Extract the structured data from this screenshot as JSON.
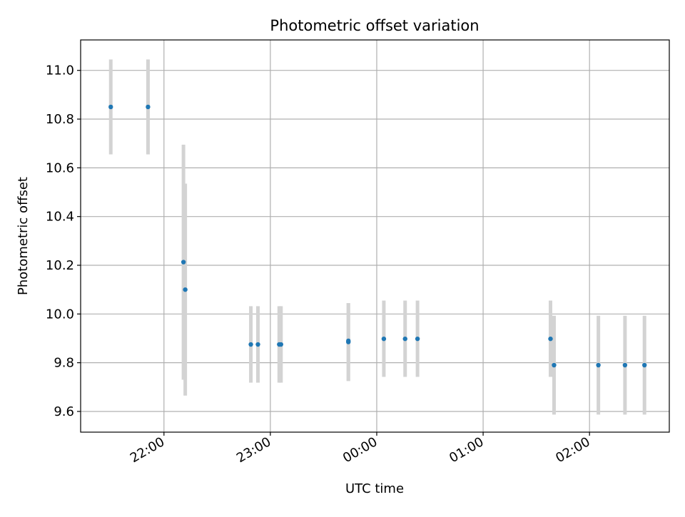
{
  "chart_data": {
    "type": "scatter",
    "title": "Photometric offset variation",
    "xlabel": "UTC time",
    "ylabel": "Photometric offset",
    "x_ticks": [
      "22:00",
      "23:00",
      "00:00",
      "01:00",
      "02:00"
    ],
    "y_ticks": [
      "9.6",
      "9.8",
      "10.0",
      "10.2",
      "10.4",
      "10.6",
      "10.8",
      "11.0"
    ],
    "xlim": [
      "21:13",
      "02:45"
    ],
    "ylim": [
      9.515,
      11.125
    ],
    "grid": true,
    "colors": {
      "marker": "#1f77b4",
      "errorbar": "#d3d3d3",
      "grid": "#b0b0b0",
      "axes": "#000000"
    },
    "series": [
      {
        "points": [
          {
            "x": "21:30",
            "y": 10.85,
            "yerr_low": 10.655,
            "yerr_high": 11.045
          },
          {
            "x": "21:51",
            "y": 10.85,
            "yerr_low": 10.655,
            "yerr_high": 11.045
          },
          {
            "x": "22:11",
            "y": 10.213,
            "yerr_low": 9.73,
            "yerr_high": 10.695
          },
          {
            "x": "22:12",
            "y": 10.1,
            "yerr_low": 9.665,
            "yerr_high": 10.535
          },
          {
            "x": "22:49",
            "y": 9.875,
            "yerr_low": 9.718,
            "yerr_high": 10.032
          },
          {
            "x": "22:53",
            "y": 9.875,
            "yerr_low": 9.718,
            "yerr_high": 10.032
          },
          {
            "x": "23:05",
            "y": 9.875,
            "yerr_low": 9.718,
            "yerr_high": 10.032
          },
          {
            "x": "23:06",
            "y": 9.875,
            "yerr_low": 9.718,
            "yerr_high": 10.032
          },
          {
            "x": "23:44",
            "y": 9.885,
            "yerr_low": 9.725,
            "yerr_high": 10.045
          },
          {
            "x": "23:44",
            "y": 9.89,
            "yerr_low": 9.725,
            "yerr_high": 10.045
          },
          {
            "x": "00:04",
            "y": 9.898,
            "yerr_low": 9.742,
            "yerr_high": 10.055
          },
          {
            "x": "00:16",
            "y": 9.898,
            "yerr_low": 9.742,
            "yerr_high": 10.055
          },
          {
            "x": "00:23",
            "y": 9.898,
            "yerr_low": 9.742,
            "yerr_high": 10.055
          },
          {
            "x": "01:38",
            "y": 9.898,
            "yerr_low": 9.742,
            "yerr_high": 10.055
          },
          {
            "x": "01:40",
            "y": 9.79,
            "yerr_low": 9.587,
            "yerr_high": 9.993
          },
          {
            "x": "02:05",
            "y": 9.79,
            "yerr_low": 9.587,
            "yerr_high": 9.993
          },
          {
            "x": "02:20",
            "y": 9.79,
            "yerr_low": 9.587,
            "yerr_high": 9.993
          },
          {
            "x": "02:31",
            "y": 9.79,
            "yerr_low": 9.587,
            "yerr_high": 9.993
          }
        ]
      }
    ]
  }
}
